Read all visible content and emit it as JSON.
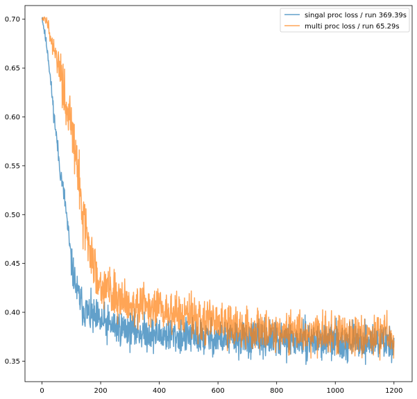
{
  "chart_data": {
    "type": "line",
    "title": "",
    "xlabel": "",
    "ylabel": "",
    "xlim": [
      -58,
      1262
    ],
    "ylim": [
      0.329,
      0.714
    ],
    "x_ticks": [
      0,
      200,
      400,
      600,
      800,
      1000,
      1200
    ],
    "y_ticks": [
      0.35,
      0.4,
      0.45,
      0.5,
      0.55,
      0.6,
      0.65,
      0.7
    ],
    "y_tick_labels": [
      "0.35",
      "0.40",
      "0.45",
      "0.50",
      "0.55",
      "0.60",
      "0.65",
      "0.70"
    ],
    "grid": false,
    "legend_position": "top-right",
    "series": [
      {
        "name": "singal proc loss / run 369.39s",
        "color": "#1f77b4",
        "alpha": 0.7,
        "x": [
          0,
          20,
          40,
          60,
          80,
          100,
          120,
          140,
          160,
          180,
          200,
          250,
          300,
          350,
          400,
          450,
          500,
          550,
          600,
          650,
          700,
          750,
          800,
          850,
          900,
          950,
          1000,
          1050,
          1100,
          1150,
          1200
        ],
        "y": [
          0.703,
          0.665,
          0.605,
          0.55,
          0.51,
          0.45,
          0.42,
          0.405,
          0.398,
          0.393,
          0.39,
          0.385,
          0.382,
          0.379,
          0.377,
          0.376,
          0.375,
          0.374,
          0.373,
          0.373,
          0.372,
          0.372,
          0.372,
          0.371,
          0.371,
          0.371,
          0.371,
          0.37,
          0.37,
          0.37,
          0.37
        ],
        "noise": [
          0.002,
          0.003,
          0.004,
          0.005,
          0.006,
          0.008,
          0.009,
          0.01,
          0.01,
          0.01,
          0.01,
          0.009,
          0.009,
          0.009,
          0.009,
          0.009,
          0.009,
          0.009,
          0.009,
          0.009,
          0.009,
          0.009,
          0.009,
          0.009,
          0.009,
          0.009,
          0.009,
          0.009,
          0.009,
          0.009,
          0.009
        ]
      },
      {
        "name": "multi proc loss / run 65.29s",
        "color": "#ff7f0e",
        "alpha": 0.7,
        "x": [
          0,
          20,
          40,
          60,
          80,
          100,
          120,
          140,
          160,
          180,
          200,
          250,
          300,
          350,
          400,
          450,
          500,
          550,
          600,
          650,
          700,
          750,
          800,
          850,
          900,
          950,
          1000,
          1050,
          1100,
          1150,
          1200
        ],
        "y": [
          0.7,
          0.698,
          0.665,
          0.65,
          0.62,
          0.59,
          0.55,
          0.5,
          0.465,
          0.445,
          0.43,
          0.418,
          0.41,
          0.405,
          0.402,
          0.399,
          0.396,
          0.392,
          0.388,
          0.385,
          0.383,
          0.382,
          0.381,
          0.38,
          0.379,
          0.378,
          0.378,
          0.377,
          0.377,
          0.376,
          0.376
        ],
        "noise": [
          0.001,
          0.003,
          0.006,
          0.009,
          0.014,
          0.016,
          0.017,
          0.015,
          0.013,
          0.012,
          0.011,
          0.011,
          0.011,
          0.011,
          0.011,
          0.011,
          0.011,
          0.011,
          0.011,
          0.01,
          0.01,
          0.01,
          0.01,
          0.01,
          0.01,
          0.01,
          0.01,
          0.01,
          0.01,
          0.01,
          0.01
        ]
      }
    ]
  }
}
